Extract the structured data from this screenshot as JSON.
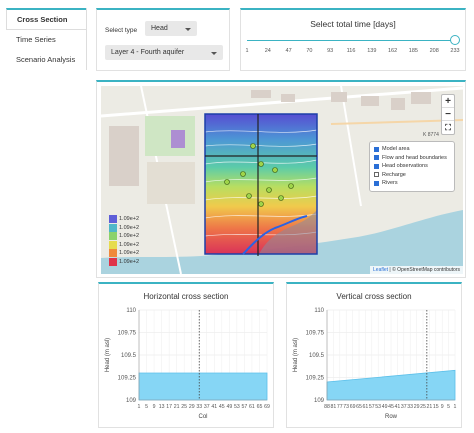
{
  "sidebar": {
    "items": [
      {
        "label": "Cross Section",
        "active": true
      },
      {
        "label": "Time Series",
        "active": false
      },
      {
        "label": "Scenario Analysis",
        "active": false
      }
    ]
  },
  "controls": {
    "type_label": "Select type",
    "type_value": "Head",
    "layer_value": "Layer 4 - Fourth aquifer"
  },
  "time": {
    "title": "Select total time [days]",
    "ticks": [
      "1",
      "24",
      "47",
      "70",
      "93",
      "116",
      "139",
      "162",
      "185",
      "208",
      "233"
    ],
    "selected_fraction": 1.0
  },
  "map": {
    "zoom_in": "+",
    "zoom_out": "−",
    "fullscreen": "⛶",
    "coord_label": "K 8774",
    "layers": [
      {
        "label": "Model area",
        "checked": true
      },
      {
        "label": "Flow and head boundaries",
        "checked": true
      },
      {
        "label": "Head observations",
        "checked": true
      },
      {
        "label": "Recharge",
        "checked": false
      },
      {
        "label": "Rivers",
        "checked": true
      }
    ],
    "legend": [
      {
        "label": "1.09e+2",
        "color": "#5e5ed8"
      },
      {
        "label": "1.09e+2",
        "color": "#4fb7c9"
      },
      {
        "label": "1.09e+2",
        "color": "#8cd26b"
      },
      {
        "label": "1.09e+2",
        "color": "#e6dc4f"
      },
      {
        "label": "1.09e+2",
        "color": "#f08a3c"
      },
      {
        "label": "1.09e+2",
        "color": "#e0344a"
      }
    ],
    "attribution_link": "Leaflet",
    "attribution_text": " | © OpenStreetMap contributors"
  },
  "chart_data": [
    {
      "type": "area",
      "title": "Horizontal cross section",
      "xlabel": "Col",
      "ylabel": "Head (m asl)",
      "x_ticks": [
        "1",
        "5",
        "9",
        "13",
        "17",
        "21",
        "25",
        "29",
        "33",
        "37",
        "41",
        "45",
        "49",
        "53",
        "57",
        "61",
        "65",
        "69"
      ],
      "y_ticks": [
        "109",
        "109.25",
        "109.5",
        "109.75",
        "110"
      ],
      "ylim": [
        109,
        110
      ],
      "x": [
        1,
        69
      ],
      "y": [
        109.3,
        109.3
      ],
      "xlim": [
        1,
        69
      ],
      "marker_x": 33,
      "fill_color": "#86d6f5"
    },
    {
      "type": "area",
      "title": "Vertical cross section",
      "xlabel": "Row",
      "ylabel": "Head (m asl)",
      "x_ticks": [
        "88",
        "81",
        "77",
        "73",
        "69",
        "65",
        "61",
        "57",
        "53",
        "49",
        "45",
        "41",
        "37",
        "33",
        "29",
        "25",
        "21",
        "15",
        "9",
        "5",
        "1"
      ],
      "y_ticks": [
        "109",
        "109.25",
        "109.5",
        "109.75",
        "110"
      ],
      "ylim": [
        109,
        110
      ],
      "x": [
        0,
        1
      ],
      "y": [
        109.2,
        109.33
      ],
      "marker_fraction": 0.78,
      "fill_color": "#86d6f5"
    }
  ]
}
